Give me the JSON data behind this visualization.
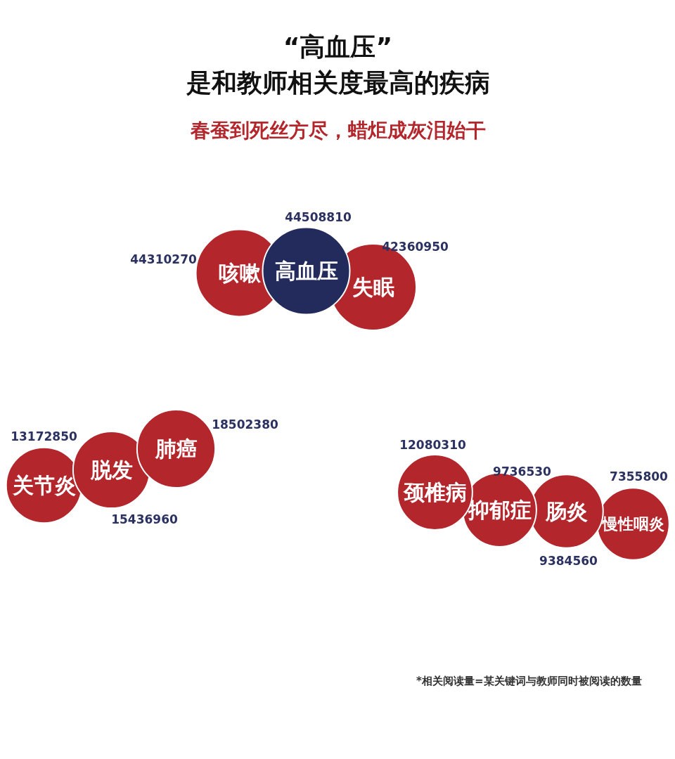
{
  "chart_data": {
    "type": "other",
    "title": "“高血压”\n是和教师相关度最高的疾病",
    "subtitle": "春蚕到死丝方尽，蜡炬成灰泪始干",
    "categories": [
      "高血压",
      "咳嗽",
      "失眠",
      "肺癌",
      "脱发",
      "关节炎",
      "颈椎病",
      "抑郁症",
      "肠炎",
      "慢性咽炎"
    ],
    "values": [
      44508810,
      44310270,
      42360950,
      18502380,
      15436960,
      13172850,
      12080310,
      9736530,
      9384560,
      7355800
    ],
    "colors": [
      "#232a5c",
      "#b3262c",
      "#b3262c",
      "#b3262c",
      "#b3262c",
      "#b3262c",
      "#b3262c",
      "#b3262c",
      "#b3262c",
      "#b3262c"
    ],
    "data_labels": true,
    "annotations": [
      "*相关阅读量=某关键词与教师同时被阅读的数量"
    ]
  }
}
